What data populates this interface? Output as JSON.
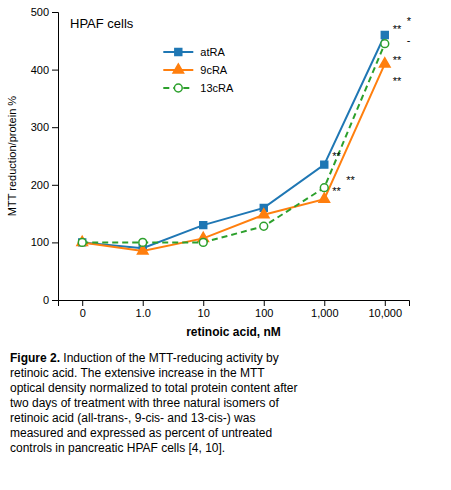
{
  "chart_data": {
    "type": "line",
    "title": "HPAF cells",
    "xlabel": "retinoic acid, nM",
    "ylabel": "MTT reduction/protein %",
    "categories": [
      "0",
      "1.0",
      "10",
      "100",
      "1,000",
      "10,000"
    ],
    "series": [
      {
        "name": "atRA",
        "values": [
          100,
          90,
          130,
          160,
          235,
          460
        ],
        "marker": "square",
        "line_style": "solid"
      },
      {
        "name": "9cRA",
        "values": [
          100,
          85,
          107,
          148,
          175,
          410
        ],
        "marker": "triangle",
        "line_style": "solid"
      },
      {
        "name": "13cRA",
        "values": [
          100,
          100,
          100,
          128,
          195,
          445
        ],
        "marker": "circle",
        "line_style": "dashed"
      }
    ],
    "ylim": [
      0,
      500
    ],
    "yticks": [
      0,
      100,
      200,
      300,
      400,
      500
    ],
    "grid": false,
    "legend": "upper left",
    "annotations": [
      {
        "text": "**",
        "category": "1,000",
        "y": 248
      },
      {
        "text": "**",
        "category": "1,000",
        "y": 188
      },
      {
        "text": "**",
        "category": "1,000",
        "y": 207
      },
      {
        "text": "**",
        "category": "10,000",
        "y": 468
      },
      {
        "text": "**",
        "category": "10,000",
        "y": 415
      },
      {
        "text": "**",
        "category": "10,000",
        "y": 378
      },
      {
        "text": "*",
        "category": "10,000",
        "y": 483
      },
      {
        "text": "-",
        "category": "10,000",
        "y": 450
      }
    ],
    "caption_bold": "Figure 2.",
    "caption": " Induction of the MTT-reducing activity by\nretinoic acid. The extensive increase in the MTT\noptical density normalized to total protein content after\ntwo days of treatment with three natural isomers of\nretinoic acid (all-trans-, 9-cis- and 13-cis-) was\nmeasured and expressed as percent of untreated\ncontrols in pancreatic HPAF cells [4, 10]."
  }
}
